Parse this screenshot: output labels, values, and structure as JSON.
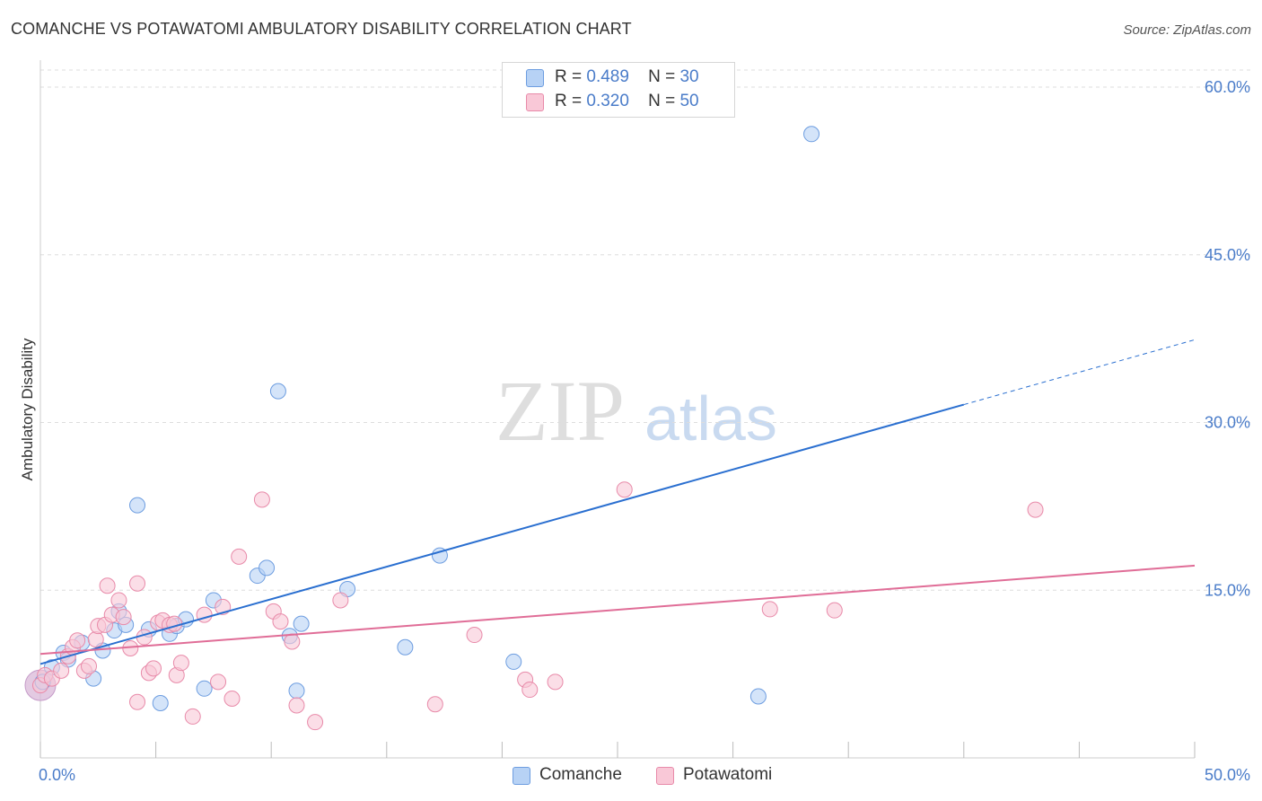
{
  "title": "COMANCHE VS POTAWATOMI AMBULATORY DISABILITY CORRELATION CHART",
  "source": "Source: ZipAtlas.com",
  "watermark": {
    "zip": "ZIP",
    "atlas": "atlas"
  },
  "colors": {
    "comanche_fill": "#b7d2f5",
    "comanche_stroke": "#6d9de0",
    "comanche_line": "#2a6fd0",
    "potawatomi_fill": "#f9c8d7",
    "potawatomi_stroke": "#e88aa9",
    "potawatomi_line": "#e06d97",
    "grid": "#dddddd",
    "tick_text": "#4a7cc9"
  },
  "legend": {
    "comanche": {
      "r_label": "R =",
      "r_value": "0.489",
      "n_label": "N =",
      "n_value": "30"
    },
    "potawatomi": {
      "r_label": "R =",
      "r_value": "0.320",
      "n_label": "N =",
      "n_value": "50"
    }
  },
  "bottom_legend": {
    "comanche": "Comanche",
    "potawatomi": "Potawatomi"
  },
  "chart_data": {
    "type": "scatter",
    "title": "COMANCHE VS POTAWATOMI AMBULATORY DISABILITY CORRELATION CHART",
    "xlabel": "",
    "ylabel": "Ambulatory Disability",
    "xlim": [
      0,
      50
    ],
    "ylim": [
      0,
      60
    ],
    "x_tick_labels": [
      {
        "value": 0,
        "label": "0.0%"
      },
      {
        "value": 50,
        "label": "50.0%"
      }
    ],
    "y_tick_labels": [
      {
        "value": 15,
        "label": "15.0%"
      },
      {
        "value": 30,
        "label": "30.0%"
      },
      {
        "value": 45,
        "label": "45.0%"
      },
      {
        "value": 60,
        "label": "60.0%"
      }
    ],
    "grid": true,
    "series": [
      {
        "name": "Comanche",
        "r": 0.489,
        "n": 30,
        "trend": {
          "x0": 0,
          "y0": 8.4,
          "x1": 40,
          "y1": 31.6,
          "dashed_to_x": 50,
          "dashed_to_y": 37.4
        },
        "points": [
          [
            0.1,
            6.8
          ],
          [
            0.5,
            8.1
          ],
          [
            1.0,
            9.4
          ],
          [
            1.2,
            8.8
          ],
          [
            1.8,
            10.3
          ],
          [
            2.3,
            7.1
          ],
          [
            2.7,
            9.6
          ],
          [
            3.2,
            11.4
          ],
          [
            3.4,
            13.1
          ],
          [
            3.7,
            11.9
          ],
          [
            4.2,
            22.6
          ],
          [
            4.7,
            11.5
          ],
          [
            5.2,
            4.9
          ],
          [
            5.6,
            11.1
          ],
          [
            5.9,
            11.8
          ],
          [
            6.3,
            12.4
          ],
          [
            7.1,
            6.2
          ],
          [
            7.5,
            14.1
          ],
          [
            9.4,
            16.3
          ],
          [
            9.8,
            17.0
          ],
          [
            10.3,
            32.8
          ],
          [
            10.8,
            10.9
          ],
          [
            11.1,
            6.0
          ],
          [
            11.3,
            12.0
          ],
          [
            13.3,
            15.1
          ],
          [
            15.8,
            9.9
          ],
          [
            17.3,
            18.1
          ],
          [
            20.5,
            8.6
          ],
          [
            31.1,
            5.5
          ],
          [
            33.4,
            55.8
          ]
        ]
      },
      {
        "name": "Potawatomi",
        "r": 0.32,
        "n": 50,
        "trend": {
          "x0": 0,
          "y0": 9.3,
          "x1": 50,
          "y1": 17.2
        },
        "points": [
          [
            0.0,
            6.5
          ],
          [
            0.2,
            7.4
          ],
          [
            0.5,
            7.1
          ],
          [
            0.9,
            7.8
          ],
          [
            1.2,
            9.1
          ],
          [
            1.4,
            9.9
          ],
          [
            1.6,
            10.5
          ],
          [
            1.9,
            7.8
          ],
          [
            2.1,
            8.2
          ],
          [
            2.4,
            10.6
          ],
          [
            2.5,
            11.8
          ],
          [
            2.8,
            11.9
          ],
          [
            2.9,
            15.4
          ],
          [
            3.1,
            12.8
          ],
          [
            3.4,
            14.1
          ],
          [
            3.6,
            12.6
          ],
          [
            3.9,
            9.8
          ],
          [
            4.2,
            15.6
          ],
          [
            4.2,
            5.0
          ],
          [
            4.5,
            10.8
          ],
          [
            4.7,
            7.6
          ],
          [
            4.9,
            8.0
          ],
          [
            5.1,
            12.1
          ],
          [
            5.3,
            12.3
          ],
          [
            5.6,
            11.9
          ],
          [
            5.8,
            12.0
          ],
          [
            5.9,
            7.4
          ],
          [
            6.1,
            8.5
          ],
          [
            6.6,
            3.7
          ],
          [
            7.1,
            12.8
          ],
          [
            7.7,
            6.8
          ],
          [
            7.9,
            13.5
          ],
          [
            8.3,
            5.3
          ],
          [
            8.6,
            18.0
          ],
          [
            9.6,
            23.1
          ],
          [
            10.1,
            13.1
          ],
          [
            10.4,
            12.2
          ],
          [
            10.9,
            10.4
          ],
          [
            11.1,
            4.7
          ],
          [
            11.9,
            3.2
          ],
          [
            13.0,
            14.1
          ],
          [
            17.1,
            4.8
          ],
          [
            18.8,
            11.0
          ],
          [
            21.0,
            7.0
          ],
          [
            21.2,
            6.1
          ],
          [
            22.3,
            6.8
          ],
          [
            25.3,
            24.0
          ],
          [
            31.6,
            13.3
          ],
          [
            34.4,
            13.2
          ],
          [
            43.1,
            22.2
          ]
        ]
      }
    ]
  }
}
